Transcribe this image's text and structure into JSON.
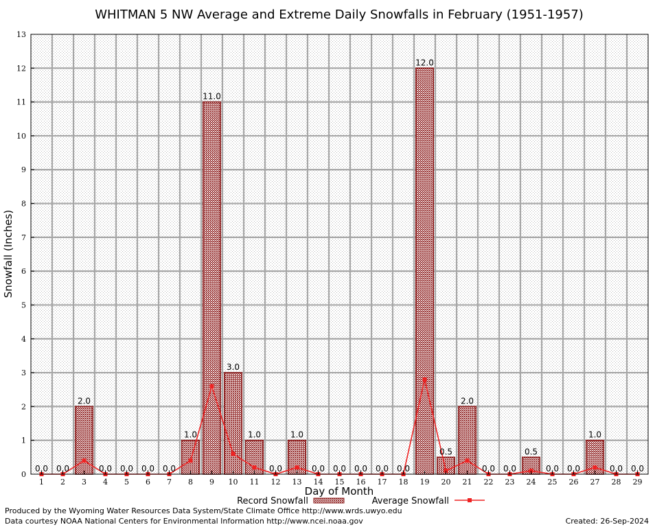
{
  "chart_data": {
    "type": "bar",
    "title": "WHITMAN 5 NW Average and Extreme Daily Snowfalls in February (1951-1957)",
    "xlabel": "Day of Month",
    "ylabel": "Snowfall (Inches)",
    "ylim": [
      0,
      13
    ],
    "yticks": [
      "0",
      "1",
      "2",
      "3",
      "4",
      "5",
      "6",
      "7",
      "8",
      "9",
      "10",
      "11",
      "12",
      "13"
    ],
    "categories": [
      "1",
      "2",
      "3",
      "4",
      "5",
      "6",
      "7",
      "8",
      "9",
      "10",
      "11",
      "12",
      "13",
      "14",
      "15",
      "16",
      "17",
      "18",
      "19",
      "20",
      "21",
      "22",
      "23",
      "24",
      "25",
      "26",
      "27",
      "28",
      "29"
    ],
    "grid": true,
    "legend_placement": "bottom-center",
    "series": [
      {
        "name": "Record Snowfall",
        "type": "bar",
        "color": "#8b1a1a",
        "values": [
          0,
          0,
          2,
          0,
          0,
          0,
          0,
          1,
          11,
          3,
          1,
          0,
          1,
          0,
          0,
          0,
          0,
          0,
          12,
          0.5,
          2,
          0,
          0,
          0.5,
          0,
          0,
          1,
          0,
          0
        ],
        "labels": [
          "0.0",
          "0.0",
          "2.0",
          "0.0",
          "0.0",
          "0.0",
          "0.0",
          "1.0",
          "11.0",
          "3.0",
          "1.0",
          "0.0",
          "1.0",
          "0.0",
          "0.0",
          "0.0",
          "0.0",
          "0.0",
          "12.0",
          "0.5",
          "2.0",
          "0.0",
          "0.0",
          "0.5",
          "0.0",
          "0.0",
          "1.0",
          "0.0",
          "0.0"
        ]
      },
      {
        "name": "Average Snowfall",
        "type": "line",
        "color": "#ee2222",
        "values": [
          0,
          0,
          0.4,
          0,
          0,
          0,
          0,
          0.4,
          2.6,
          0.6,
          0.2,
          0,
          0.2,
          0,
          0,
          0,
          0,
          0,
          2.8,
          0.1,
          0.4,
          0,
          0,
          0.1,
          0,
          0,
          0.2,
          0,
          0
        ]
      }
    ]
  },
  "footer": {
    "produced_by": "Produced by the Wyoming Water Resources Data System/State Climate Office http://www.wrds.uwyo.edu",
    "courtesy": "Data courtesy NOAA National Centers for Environmental Information http://www.ncei.noaa.gov",
    "created": "Created:  26-Sep-2024"
  }
}
